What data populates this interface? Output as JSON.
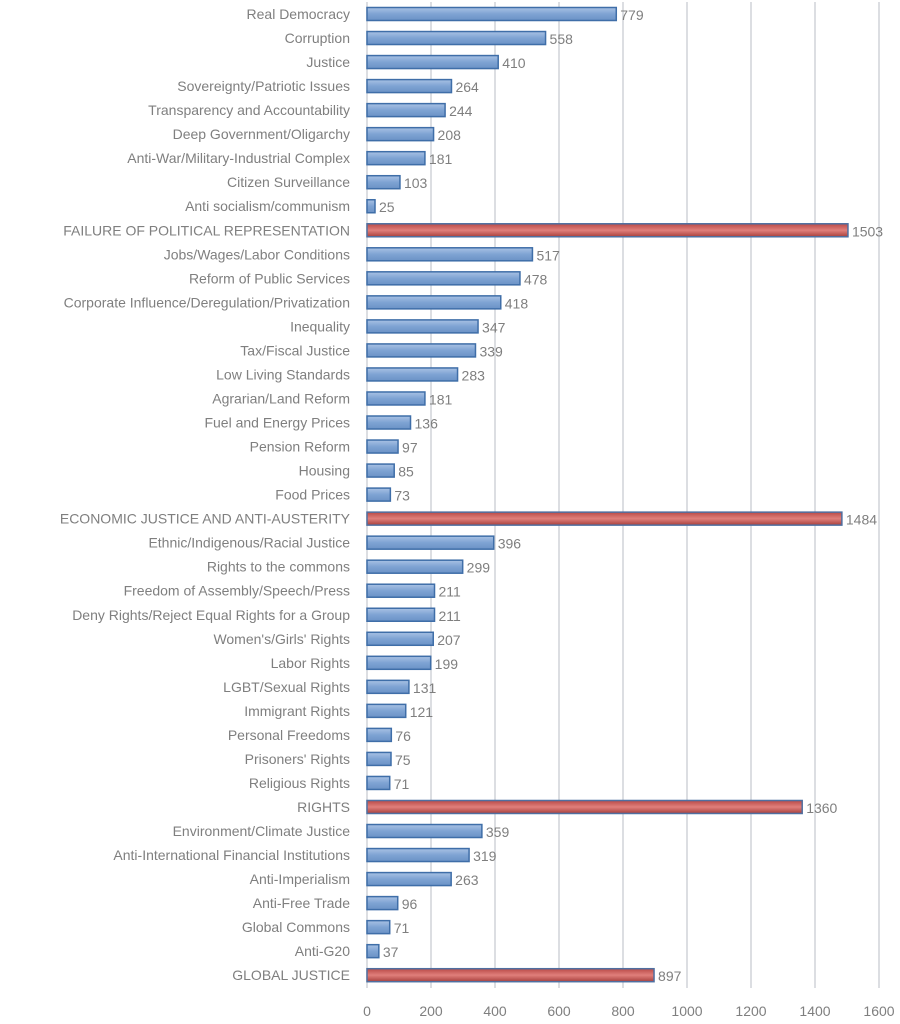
{
  "chart_data": {
    "type": "bar",
    "orientation": "horizontal",
    "title": "",
    "xlabel": "",
    "ylabel": "",
    "xlim": [
      0,
      1600
    ],
    "x_ticks": [
      0,
      200,
      400,
      600,
      800,
      1000,
      1200,
      1400,
      1600
    ],
    "grid": true,
    "legend": "none",
    "colors": {
      "item": "#7ea3d3",
      "item_border": "#3f6ea8",
      "category": "#c0504d",
      "category_border": "#4f6fa0",
      "text": "#7f7f7f",
      "grid": "#d0d3d8"
    },
    "bars": [
      {
        "label": "Real Democracy",
        "value": 779,
        "kind": "item"
      },
      {
        "label": "Corruption",
        "value": 558,
        "kind": "item"
      },
      {
        "label": "Justice",
        "value": 410,
        "kind": "item"
      },
      {
        "label": "Sovereignty/Patriotic Issues",
        "value": 264,
        "kind": "item"
      },
      {
        "label": "Transparency and Accountability",
        "value": 244,
        "kind": "item"
      },
      {
        "label": "Deep Government/Oligarchy",
        "value": 208,
        "kind": "item"
      },
      {
        "label": "Anti-War/Military-Industrial Complex",
        "value": 181,
        "kind": "item"
      },
      {
        "label": "Citizen Surveillance",
        "value": 103,
        "kind": "item"
      },
      {
        "label": "Anti socialism/communism",
        "value": 25,
        "kind": "item"
      },
      {
        "label": "FAILURE OF POLITICAL REPRESENTATION",
        "value": 1503,
        "kind": "category"
      },
      {
        "label": "Jobs/Wages/Labor Conditions",
        "value": 517,
        "kind": "item"
      },
      {
        "label": "Reform of Public Services",
        "value": 478,
        "kind": "item"
      },
      {
        "label": "Corporate Influence/Deregulation/Privatization",
        "value": 418,
        "kind": "item"
      },
      {
        "label": "Inequality",
        "value": 347,
        "kind": "item"
      },
      {
        "label": "Tax/Fiscal Justice",
        "value": 339,
        "kind": "item"
      },
      {
        "label": "Low Living Standards",
        "value": 283,
        "kind": "item"
      },
      {
        "label": "Agrarian/Land Reform",
        "value": 181,
        "kind": "item"
      },
      {
        "label": "Fuel and Energy Prices",
        "value": 136,
        "kind": "item"
      },
      {
        "label": "Pension Reform",
        "value": 97,
        "kind": "item"
      },
      {
        "label": "Housing",
        "value": 85,
        "kind": "item"
      },
      {
        "label": "Food Prices",
        "value": 73,
        "kind": "item"
      },
      {
        "label": "ECONOMIC JUSTICE AND ANTI-AUSTERITY",
        "value": 1484,
        "kind": "category"
      },
      {
        "label": "Ethnic/Indigenous/Racial Justice",
        "value": 396,
        "kind": "item"
      },
      {
        "label": "Rights to the commons",
        "value": 299,
        "kind": "item"
      },
      {
        "label": "Freedom of Assembly/Speech/Press",
        "value": 211,
        "kind": "item"
      },
      {
        "label": "Deny Rights/Reject Equal Rights for a Group",
        "value": 211,
        "kind": "item"
      },
      {
        "label": "Women's/Girls' Rights",
        "value": 207,
        "kind": "item"
      },
      {
        "label": "Labor Rights",
        "value": 199,
        "kind": "item"
      },
      {
        "label": "LGBT/Sexual Rights",
        "value": 131,
        "kind": "item"
      },
      {
        "label": "Immigrant Rights",
        "value": 121,
        "kind": "item"
      },
      {
        "label": "Personal Freedoms",
        "value": 76,
        "kind": "item"
      },
      {
        "label": "Prisoners' Rights",
        "value": 75,
        "kind": "item"
      },
      {
        "label": "Religious Rights",
        "value": 71,
        "kind": "item"
      },
      {
        "label": "RIGHTS",
        "value": 1360,
        "kind": "category"
      },
      {
        "label": "Environment/Climate Justice",
        "value": 359,
        "kind": "item"
      },
      {
        "label": "Anti-International Financial Institutions",
        "value": 319,
        "kind": "item"
      },
      {
        "label": "Anti-Imperialism",
        "value": 263,
        "kind": "item"
      },
      {
        "label": "Anti-Free Trade",
        "value": 96,
        "kind": "item"
      },
      {
        "label": "Global Commons",
        "value": 71,
        "kind": "item"
      },
      {
        "label": "Anti-G20",
        "value": 37,
        "kind": "item"
      },
      {
        "label": "GLOBAL JUSTICE",
        "value": 897,
        "kind": "category"
      }
    ]
  }
}
